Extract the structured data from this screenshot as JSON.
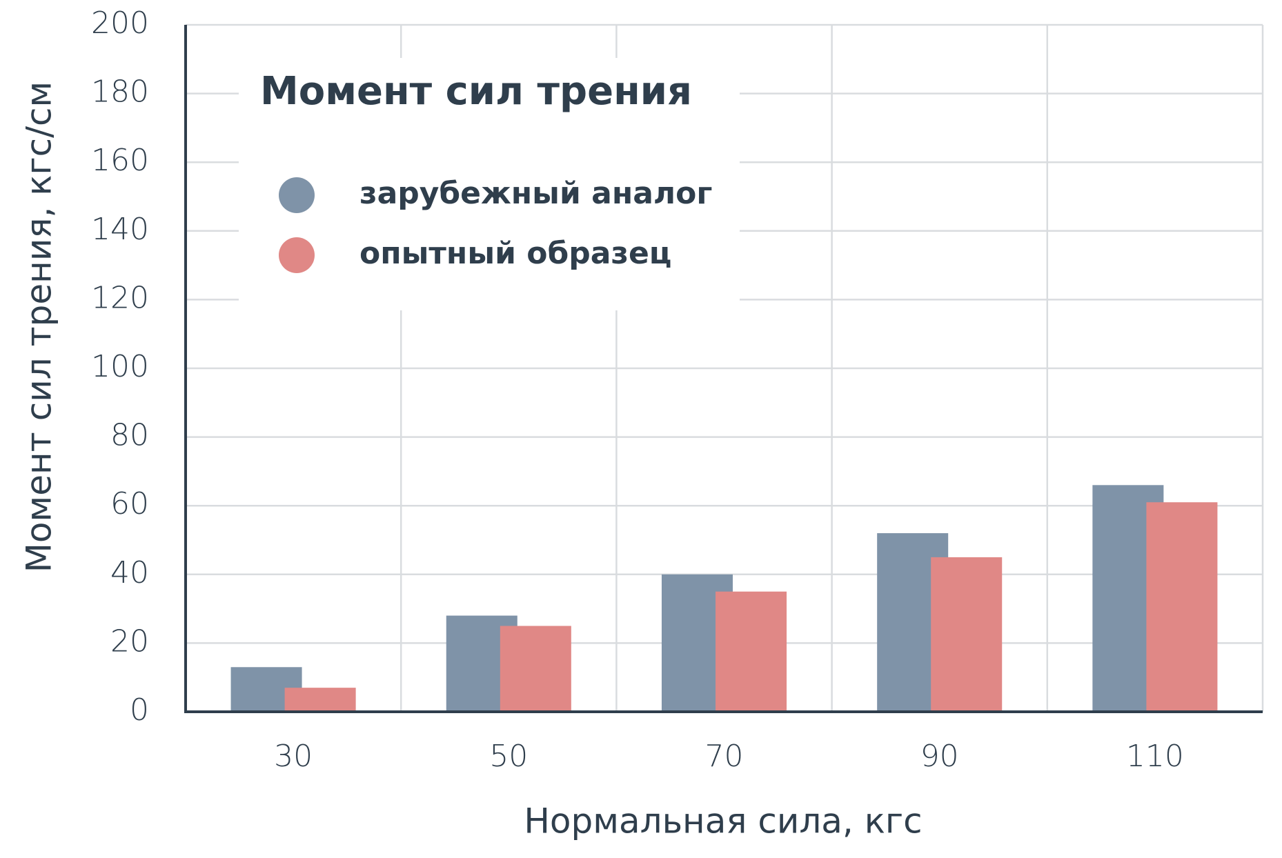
{
  "chart_data": {
    "type": "bar",
    "title": "Момент сил трения",
    "x_label": "Нормальная сила, кгс",
    "y_label": "Момент сил трения, кгс/см",
    "categories": [
      "30",
      "50",
      "70",
      "90",
      "110"
    ],
    "series": [
      {
        "name": "зарубежный аналог",
        "color": "#7f93a8",
        "values": [
          13,
          28,
          40,
          52,
          66
        ]
      },
      {
        "name": "опытный образец",
        "color": "#e08886",
        "values": [
          7,
          25,
          35,
          45,
          61
        ]
      }
    ],
    "ylim": [
      0,
      200
    ],
    "yticks": [
      0,
      20,
      40,
      60,
      80,
      100,
      120,
      140,
      160,
      180,
      200
    ],
    "grid": true,
    "legend": "upper left"
  }
}
